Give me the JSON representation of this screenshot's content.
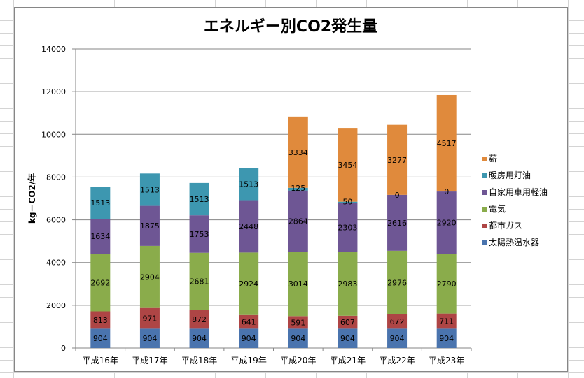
{
  "chart_data": {
    "type": "bar",
    "stacked": true,
    "title": "エネルギー別CO2発生量",
    "xlabel": "",
    "ylabel": "kg－CO2/年",
    "ylim": [
      0,
      14000
    ],
    "yticks": [
      0,
      2000,
      4000,
      6000,
      8000,
      10000,
      12000,
      14000
    ],
    "ytick_labels": [
      "0",
      "2000",
      "4000",
      "6000",
      "8000",
      "10000",
      "12000",
      "14000"
    ],
    "grid": true,
    "legend_position": "right",
    "categories": [
      "平成16年",
      "平成17年",
      "平成18年",
      "平成19年",
      "平成20年",
      "平成21年",
      "平成22年",
      "平成23年"
    ],
    "series": [
      {
        "name": "太陽熱温水器",
        "color": "#4a74ae",
        "values": [
          904,
          904,
          904,
          904,
          904,
          904,
          904,
          904
        ]
      },
      {
        "name": "都市ガス",
        "color": "#ae4545",
        "values": [
          813,
          971,
          872,
          641,
          591,
          607,
          672,
          711
        ]
      },
      {
        "name": "電気",
        "color": "#8aac4b",
        "values": [
          2692,
          2904,
          2681,
          2924,
          3014,
          2983,
          2976,
          2790
        ]
      },
      {
        "name": "自家用車用軽油",
        "color": "#6e5694",
        "values": [
          1634,
          1875,
          1753,
          2448,
          2864,
          2303,
          2616,
          2920
        ]
      },
      {
        "name": "暖房用灯油",
        "color": "#3d97b0",
        "values": [
          1513,
          1513,
          1513,
          1513,
          125,
          50,
          0,
          0
        ]
      },
      {
        "name": "薪",
        "color": "#e08a3c",
        "values": [
          0,
          0,
          0,
          0,
          3334,
          3454,
          3277,
          4517
        ]
      }
    ],
    "data_labels_shown": {
      "薪": [
        false,
        false,
        false,
        false,
        true,
        true,
        true,
        true
      ],
      "暖房用灯油": [
        true,
        true,
        true,
        true,
        true,
        true,
        true,
        true
      ]
    },
    "legend_order": [
      "薪",
      "暖房用灯油",
      "自家用車用軽油",
      "電気",
      "都市ガス",
      "太陽熱温水器"
    ]
  }
}
